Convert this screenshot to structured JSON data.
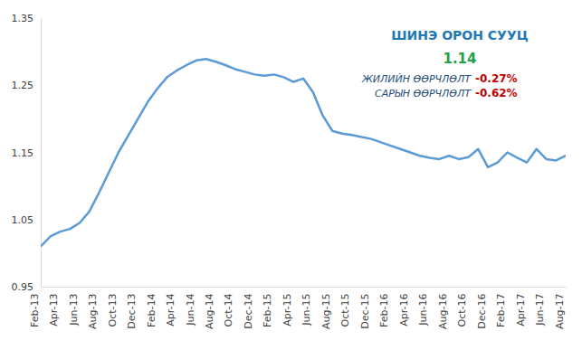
{
  "chart_data": {
    "type": "line",
    "title": "ШИНЭ ОРОН СУУЦ",
    "annotations": [
      {
        "text": "1.14"
      },
      {
        "label": "ЖИЛИЙН ӨӨРЧЛӨЛТ",
        "text": "-0.27%"
      },
      {
        "label": "САРЫН ӨӨРЧЛӨЛТ",
        "text": "-0.62%"
      }
    ],
    "categories": [
      "Feb-13",
      null,
      "Apr-13",
      null,
      "Jun-13",
      null,
      "Aug-13",
      null,
      "Oct-13",
      null,
      "Dec-13",
      null,
      "Feb-14",
      null,
      "Apr-14",
      null,
      "Jun-14",
      null,
      "Aug-14",
      null,
      "Oct-14",
      null,
      "Dec-14",
      null,
      "Feb-15",
      null,
      "Apr-15",
      null,
      "Jun-15",
      null,
      "Aug-15",
      null,
      "Oct-15",
      null,
      "Dec-15",
      null,
      "Feb-16",
      null,
      "Apr-16",
      null,
      "Jun-16",
      null,
      "Aug-16",
      null,
      "Oct-16",
      null,
      "Dec-16",
      null,
      "Feb-17",
      null,
      "Apr-17",
      null,
      "Jun-17",
      null,
      "Aug-17"
    ],
    "values": [
      1.01,
      1.025,
      1.032,
      1.036,
      1.045,
      1.062,
      1.09,
      1.12,
      1.15,
      1.175,
      1.2,
      1.225,
      1.245,
      1.262,
      1.272,
      1.28,
      1.287,
      1.289,
      1.285,
      1.28,
      1.274,
      1.27,
      1.266,
      1.264,
      1.266,
      1.262,
      1.255,
      1.26,
      1.24,
      1.205,
      1.182,
      1.178,
      1.176,
      1.173,
      1.17,
      1.165,
      1.16,
      1.155,
      1.15,
      1.145,
      1.142,
      1.14,
      1.145,
      1.14,
      1.143,
      1.155,
      1.128,
      1.135,
      1.15,
      1.142,
      1.135,
      1.155,
      1.14,
      1.138,
      1.145
    ],
    "color": "#5b9bd5",
    "ylim": [
      0.95,
      1.35
    ],
    "yticks": [
      0.95,
      1.05,
      1.15,
      1.25,
      1.35
    ],
    "grid": false
  }
}
